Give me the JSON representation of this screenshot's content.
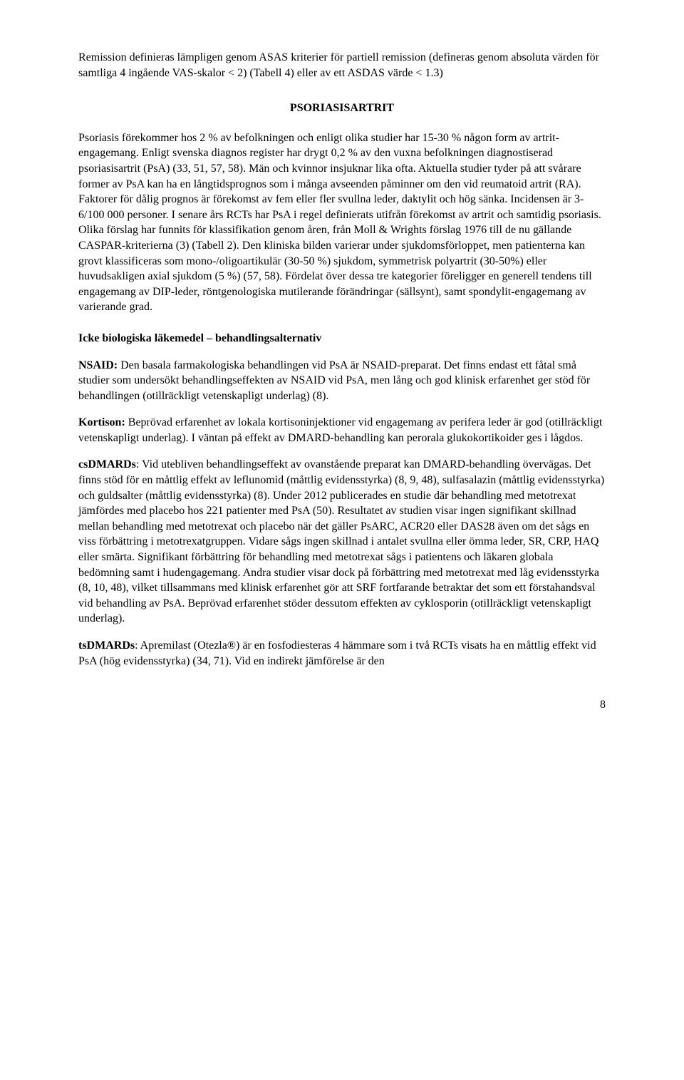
{
  "para_remission": "Remission definieras lämpligen genom ASAS kriterier för partiell remission (defineras genom absoluta värden för samtliga 4 ingående VAS-skalor < 2) (Tabell 4) eller av ett ASDAS värde < 1.3)",
  "heading_psoriasisartrit": "PSORIASISARTRIT",
  "para_psoriasis": "Psoriasis förekommer hos 2 % av befolkningen och enligt olika studier har 15-30 % någon form av artrit-engagemang. Enligt svenska diagnos register har drygt 0,2 % av den vuxna befolkningen diagnostiserad psoriasisartrit (PsA) (33, 51, 57, 58). Män och kvinnor insjuknar lika ofta. Aktuella studier tyder på att svårare former av PsA kan ha en långtidsprognos som i många avseenden påminner om den vid reumatoid artrit (RA). Faktorer för dålig prognos är förekomst av fem eller fler svullna leder, daktylit och hög sänka. Incidensen är 3-6/100 000 personer. I senare års RCTs har PsA i regel definierats utifrån förekomst av artrit och samtidig psoriasis. Olika förslag har funnits för klassifikation genom åren, från Moll & Wrights förslag 1976 till de nu gällande CASPAR-kriterierna (3) (Tabell 2). Den kliniska bilden varierar under sjukdomsförloppet, men patienterna kan grovt klassificeras som mono-/oligoartikulär (30-50 %) sjukdom, symmetrisk polyartrit (30-50%) eller huvudsakligen axial sjukdom (5 %) (57, 58). Fördelat över dessa tre kategorier föreligger en generell tendens till engagemang av DIP-leder, röntgenologiska mutilerande förändringar (sällsynt), samt spondylit-engagemang av varierande grad.",
  "heading_icke_bio": "Icke biologiska läkemedel – behandlingsalternativ",
  "nsaid": {
    "label": "NSAID:",
    "text": " Den basala farmakologiska behandlingen vid PsA är NSAID-preparat. Det finns endast ett fåtal små studier som undersökt behandlingseffekten av NSAID vid PsA, men lång och god klinisk erfarenhet ger stöd för behandlingen (otillräckligt vetenskapligt underlag) (8)."
  },
  "kortison": {
    "label": "Kortison:",
    "text": " Beprövad erfarenhet av lokala kortisoninjektioner vid engagemang av perifera leder är god (otillräckligt vetenskapligt underlag). I väntan på effekt av DMARD-behandling kan perorala glukokortikoider ges i lågdos."
  },
  "csdmards": {
    "label": "csDMARDs",
    "text": ": Vid utebliven behandlingseffekt av ovanstående preparat kan DMARD-behandling övervägas. Det finns stöd för en måttlig effekt av leflunomid (måttlig evidensstyrka) (8, 9, 48), sulfasalazin (måttlig evidensstyrka) och guldsalter (måttlig evidensstyrka) (8). Under 2012 publicerades en studie där behandling med metotrexat jämfördes med placebo hos 221 patienter med PsA (50). Resultatet av studien visar ingen signifikant skillnad mellan behandling med metotrexat och placebo när det gäller PsARC, ACR20 eller DAS28 även om det sågs en viss förbättring i metotrexatgruppen. Vidare sågs ingen skillnad i antalet svullna eller ömma leder, SR, CRP, HAQ eller smärta. Signifikant förbättring för behandling med metotrexat sågs i patientens och läkaren globala bedömning samt i hudengagemang.  Andra studier visar dock på förbättring med metotrexat med låg evidensstyrka (8, 10, 48), vilket tillsammans med klinisk erfarenhet gör att SRF fortfarande betraktar det som ett förstahandsval vid behandling av PsA. Beprövad erfarenhet stöder dessutom effekten av cyklosporin (otillräckligt vetenskapligt underlag)."
  },
  "tsdmards": {
    "label": "tsDMARDs",
    "text": ": Apremilast (Otezla®) är en fosfodiesteras 4 hämmare som i två RCTs visats ha en måttlig effekt vid PsA (hög evidensstyrka) (34, 71). Vid en indirekt jämförelse är den"
  },
  "page_number": "8"
}
